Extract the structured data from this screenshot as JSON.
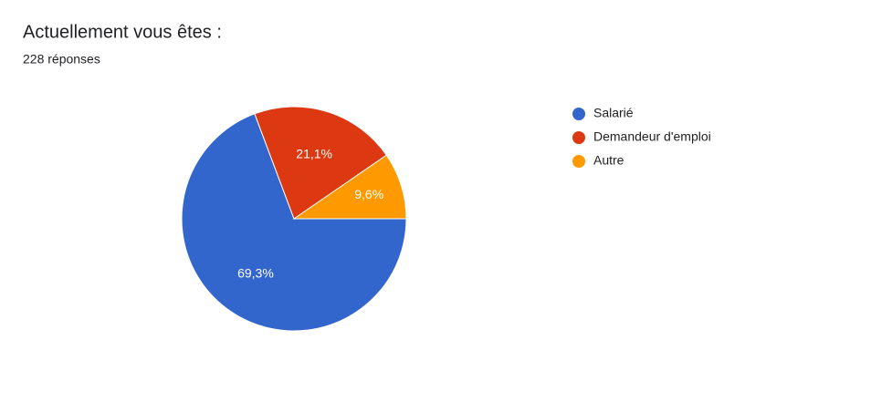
{
  "chart_data": {
    "type": "pie",
    "title": "Actuellement vous êtes :",
    "subtitle": "228 réponses",
    "categories": [
      "Salarié",
      "Demandeur d'emploi",
      "Autre"
    ],
    "values": [
      69.3,
      21.1,
      9.6
    ],
    "value_labels": [
      "69,3%",
      "21,1%",
      "9,6%"
    ],
    "colors": [
      "#3366cc",
      "#dc3912",
      "#ff9900"
    ]
  }
}
